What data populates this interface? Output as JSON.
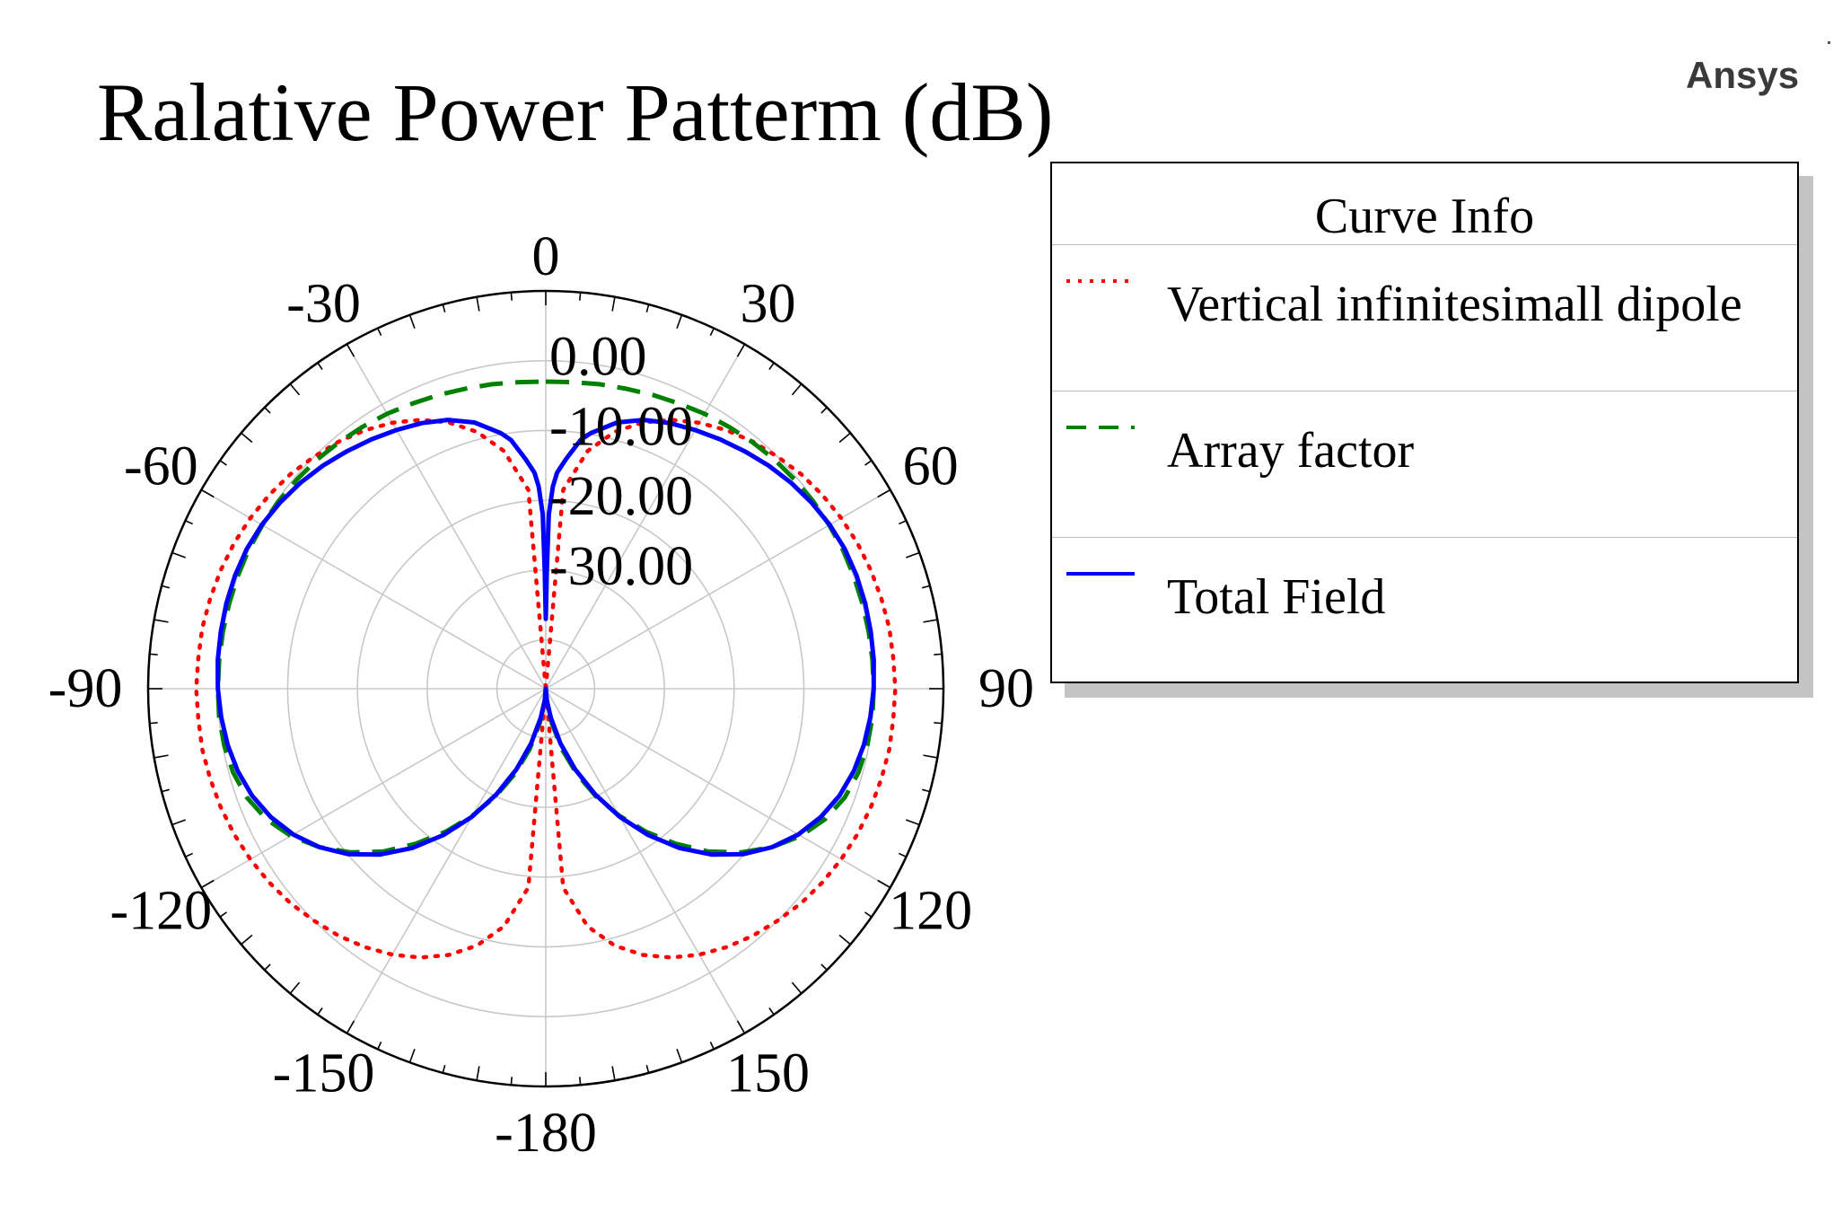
{
  "brand": "Ansys",
  "chart_data": {
    "type": "polar-line",
    "title": "Ralative Power Patterm (dB)",
    "angle_unit": "deg",
    "angle_direction": "clockwise",
    "zero_location": "top",
    "angle_ticks": [
      0,
      30,
      60,
      90,
      120,
      150,
      -180,
      -150,
      -120,
      -90,
      -60,
      -30
    ],
    "angle_tick_labels": [
      "0",
      "30",
      "60",
      "90",
      "120",
      "150",
      "-180",
      "-150",
      "-120",
      "-90",
      "-60",
      "-30"
    ],
    "radial_range": [
      -47,
      10
    ],
    "radial_ticks": [
      0.0,
      -10.0,
      -20.0,
      -30.0
    ],
    "radial_tick_labels": [
      "0.00",
      "-10.00",
      "-20.00",
      "-30.00"
    ],
    "radial_gridlines": [
      0,
      -10,
      -20,
      -30,
      -40
    ],
    "legend": {
      "title": "Curve Info",
      "position": "right",
      "entries": [
        {
          "label": "Vertical infinitesimall dipole",
          "color": "#ff0000",
          "style": "dotted"
        },
        {
          "label": "Array factor",
          "color": "#008000",
          "style": "dashed"
        },
        {
          "label": "Total Field",
          "color": "#0000ff",
          "style": "solid"
        }
      ]
    },
    "series": [
      {
        "name": "Vertical infinitesimall dipole",
        "color": "#ff0000",
        "style": "dotted",
        "theta": [
          0,
          5,
          10,
          15,
          20,
          25,
          30,
          35,
          40,
          45,
          50,
          55,
          60,
          65,
          70,
          75,
          80,
          85,
          90,
          95,
          100,
          105,
          110,
          115,
          120,
          125,
          130,
          135,
          140,
          145,
          150,
          155,
          160,
          165,
          170,
          175,
          180
        ],
        "r_db": [
          -47,
          -18.4,
          -12.4,
          -8.9,
          -6.4,
          -4.5,
          -3.0,
          -1.8,
          -0.8,
          0.0,
          0.8,
          1.4,
          1.9,
          2.3,
          2.6,
          2.8,
          3.0,
          3.0,
          3.1,
          3.0,
          3.0,
          2.8,
          2.6,
          2.3,
          1.9,
          1.4,
          0.8,
          0.0,
          -0.8,
          -1.8,
          -3.0,
          -4.5,
          -6.4,
          -8.9,
          -12.4,
          -18.4,
          -47
        ]
      },
      {
        "name": "Array factor",
        "color": "#008000",
        "style": "dashed",
        "theta": [
          0,
          5,
          10,
          15,
          20,
          25,
          30,
          35,
          40,
          45,
          50,
          55,
          60,
          65,
          70,
          75,
          80,
          85,
          90,
          95,
          100,
          105,
          110,
          115,
          120,
          125,
          130,
          135,
          140,
          145,
          150,
          155,
          160,
          165,
          170,
          175,
          180
        ],
        "r_db": [
          -3.0,
          -2.9,
          -2.7,
          -2.5,
          -2.2,
          -1.9,
          -1.5,
          -1.2,
          -0.9,
          -0.6,
          -0.4,
          -0.2,
          -0.1,
          0.0,
          0.0,
          0.0,
          0.0,
          0.0,
          0.0,
          0.0,
          -0.2,
          -0.6,
          -1.4,
          -2.8,
          -4.8,
          -7.4,
          -10.5,
          -14.0,
          -18.0,
          -22.0,
          -26.0,
          -30.0,
          -34.0,
          -38.0,
          -42.0,
          -45.0,
          -47.0
        ]
      },
      {
        "name": "Total Field",
        "color": "#0000ff",
        "style": "solid",
        "theta": [
          0,
          0.5,
          1,
          2,
          3,
          5,
          8,
          10,
          15,
          20,
          25,
          30,
          35,
          40,
          45,
          50,
          55,
          60,
          65,
          70,
          75,
          80,
          85,
          90,
          95,
          100,
          105,
          110,
          115,
          120,
          125,
          130,
          135,
          140,
          145,
          150,
          155,
          160,
          165,
          170,
          175,
          180
        ],
        "r_db": [
          -37,
          -30,
          -22,
          -18,
          -16,
          -14,
          -11,
          -9.8,
          -7.5,
          -6.0,
          -5.0,
          -4.2,
          -3.4,
          -2.6,
          -1.8,
          -1.1,
          -0.5,
          0.0,
          0.3,
          0.4,
          0.4,
          0.3,
          0.2,
          0.0,
          -0.3,
          -0.7,
          -1.3,
          -2.2,
          -3.5,
          -5.2,
          -7.4,
          -10.1,
          -13.4,
          -17.2,
          -21.4,
          -25.8,
          -30.3,
          -34.7,
          -38.9,
          -42.7,
          -45.3,
          -47.0
        ]
      }
    ]
  }
}
